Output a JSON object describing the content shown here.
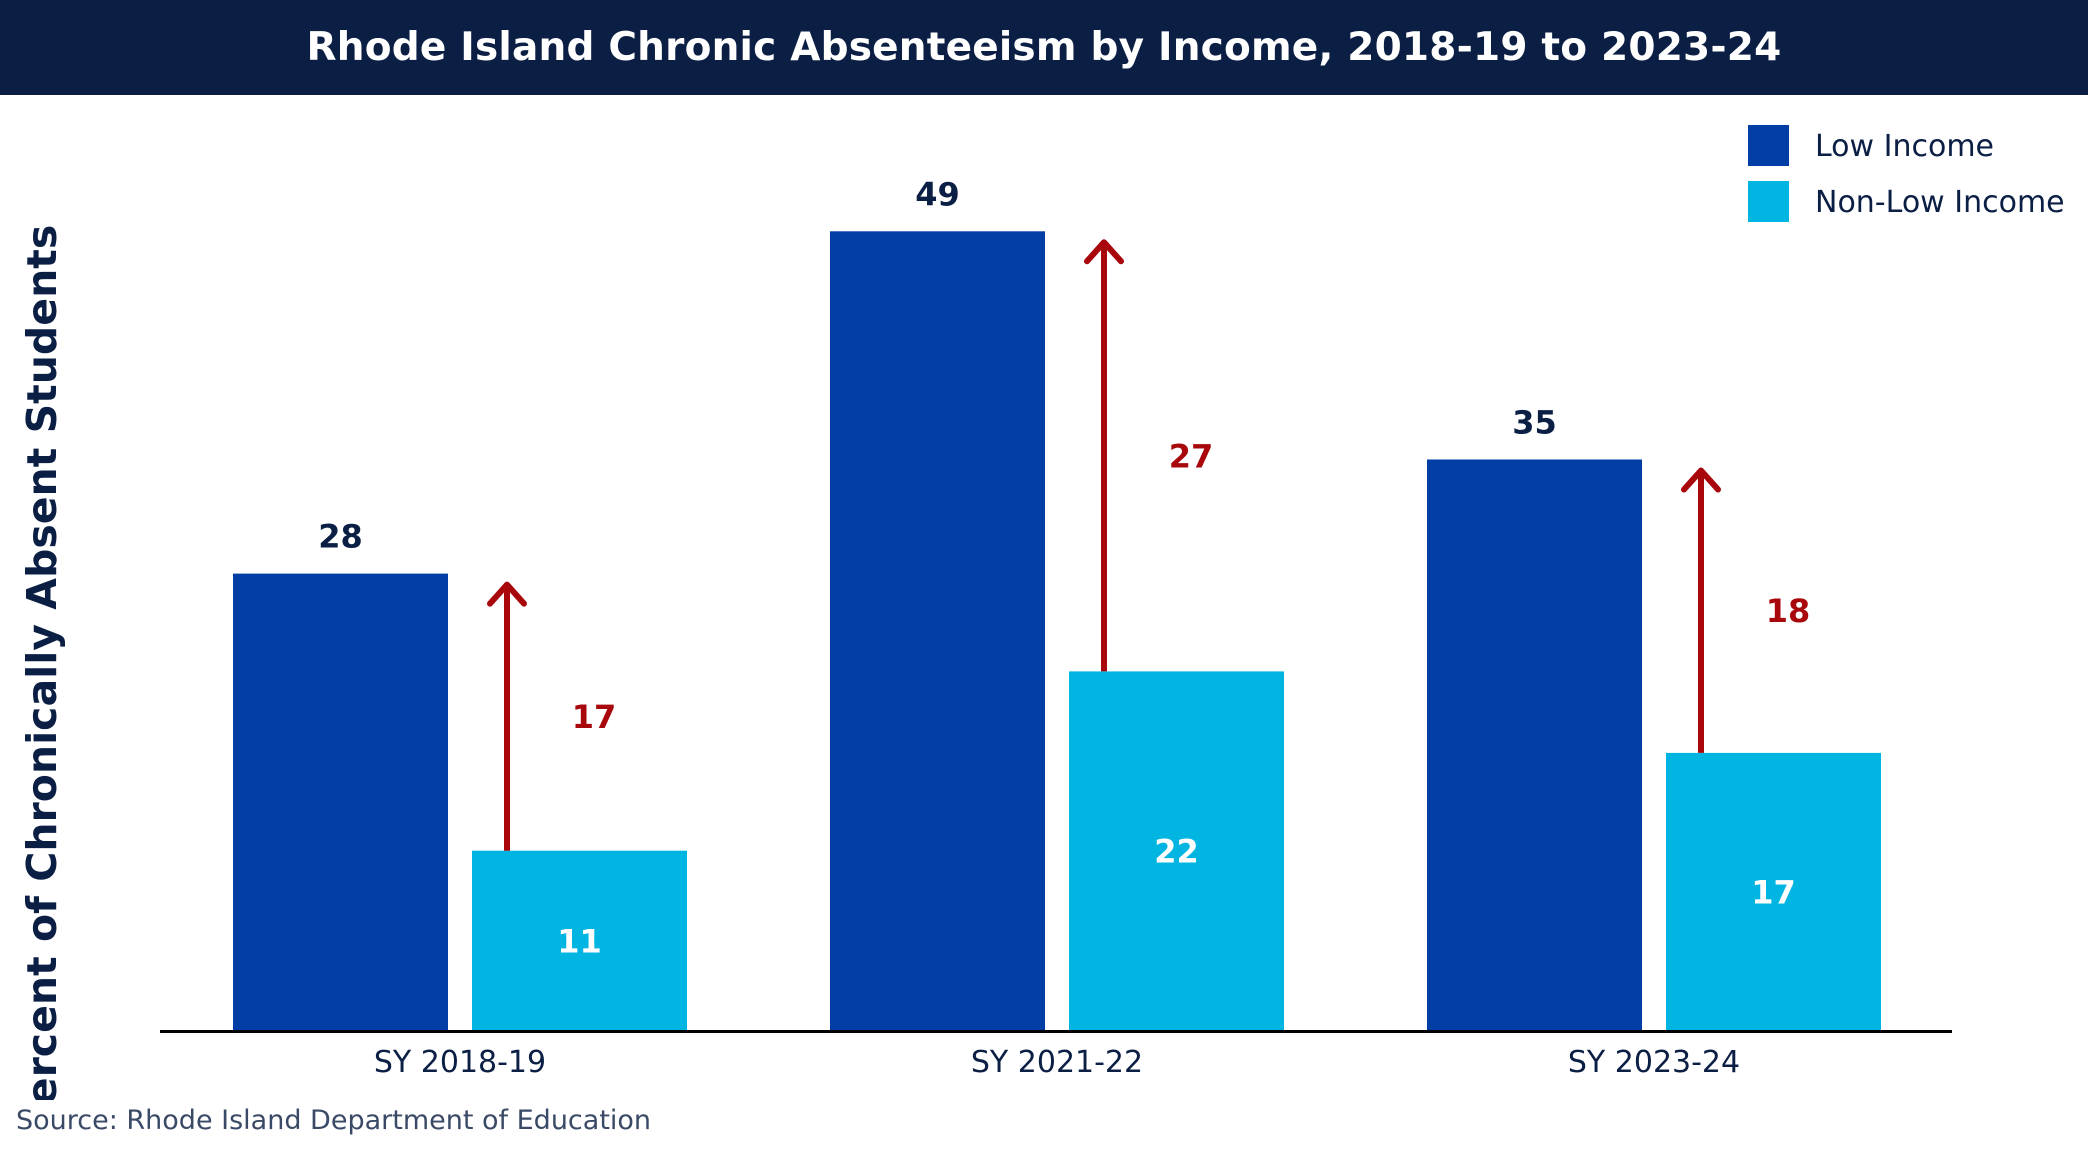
{
  "title": "Rhode Island Chronic Absenteeism by Income, 2018-19 to 2023-24",
  "source": "Source: Rhode Island Department of Education",
  "colors": {
    "title_bg": "#0b1f45",
    "low_income": "#003da5",
    "non_low_income": "#00b5e2",
    "gap_arrow": "#a8080c",
    "axis": "#000000"
  },
  "chart_data": {
    "type": "bar",
    "title": "Rhode Island Chronic Absenteeism by Income, 2018-19 to 2023-24",
    "xlabel": "",
    "ylabel": "Percent of Chronically Absent Students",
    "categories": [
      "SY 2018-19",
      "SY 2021-22",
      "SY 2023-24"
    ],
    "series": [
      {
        "name": "Low Income",
        "values": [
          28,
          49,
          35
        ]
      },
      {
        "name": "Non-Low Income",
        "values": [
          11,
          22,
          17
        ]
      }
    ],
    "gap_annotations": [
      {
        "category": "SY 2018-19",
        "value": 17
      },
      {
        "category": "SY 2021-22",
        "value": 27
      },
      {
        "category": "SY 2023-24",
        "value": 18
      }
    ],
    "ylim": [
      0,
      55
    ],
    "grid": false,
    "legend": "top-right"
  }
}
